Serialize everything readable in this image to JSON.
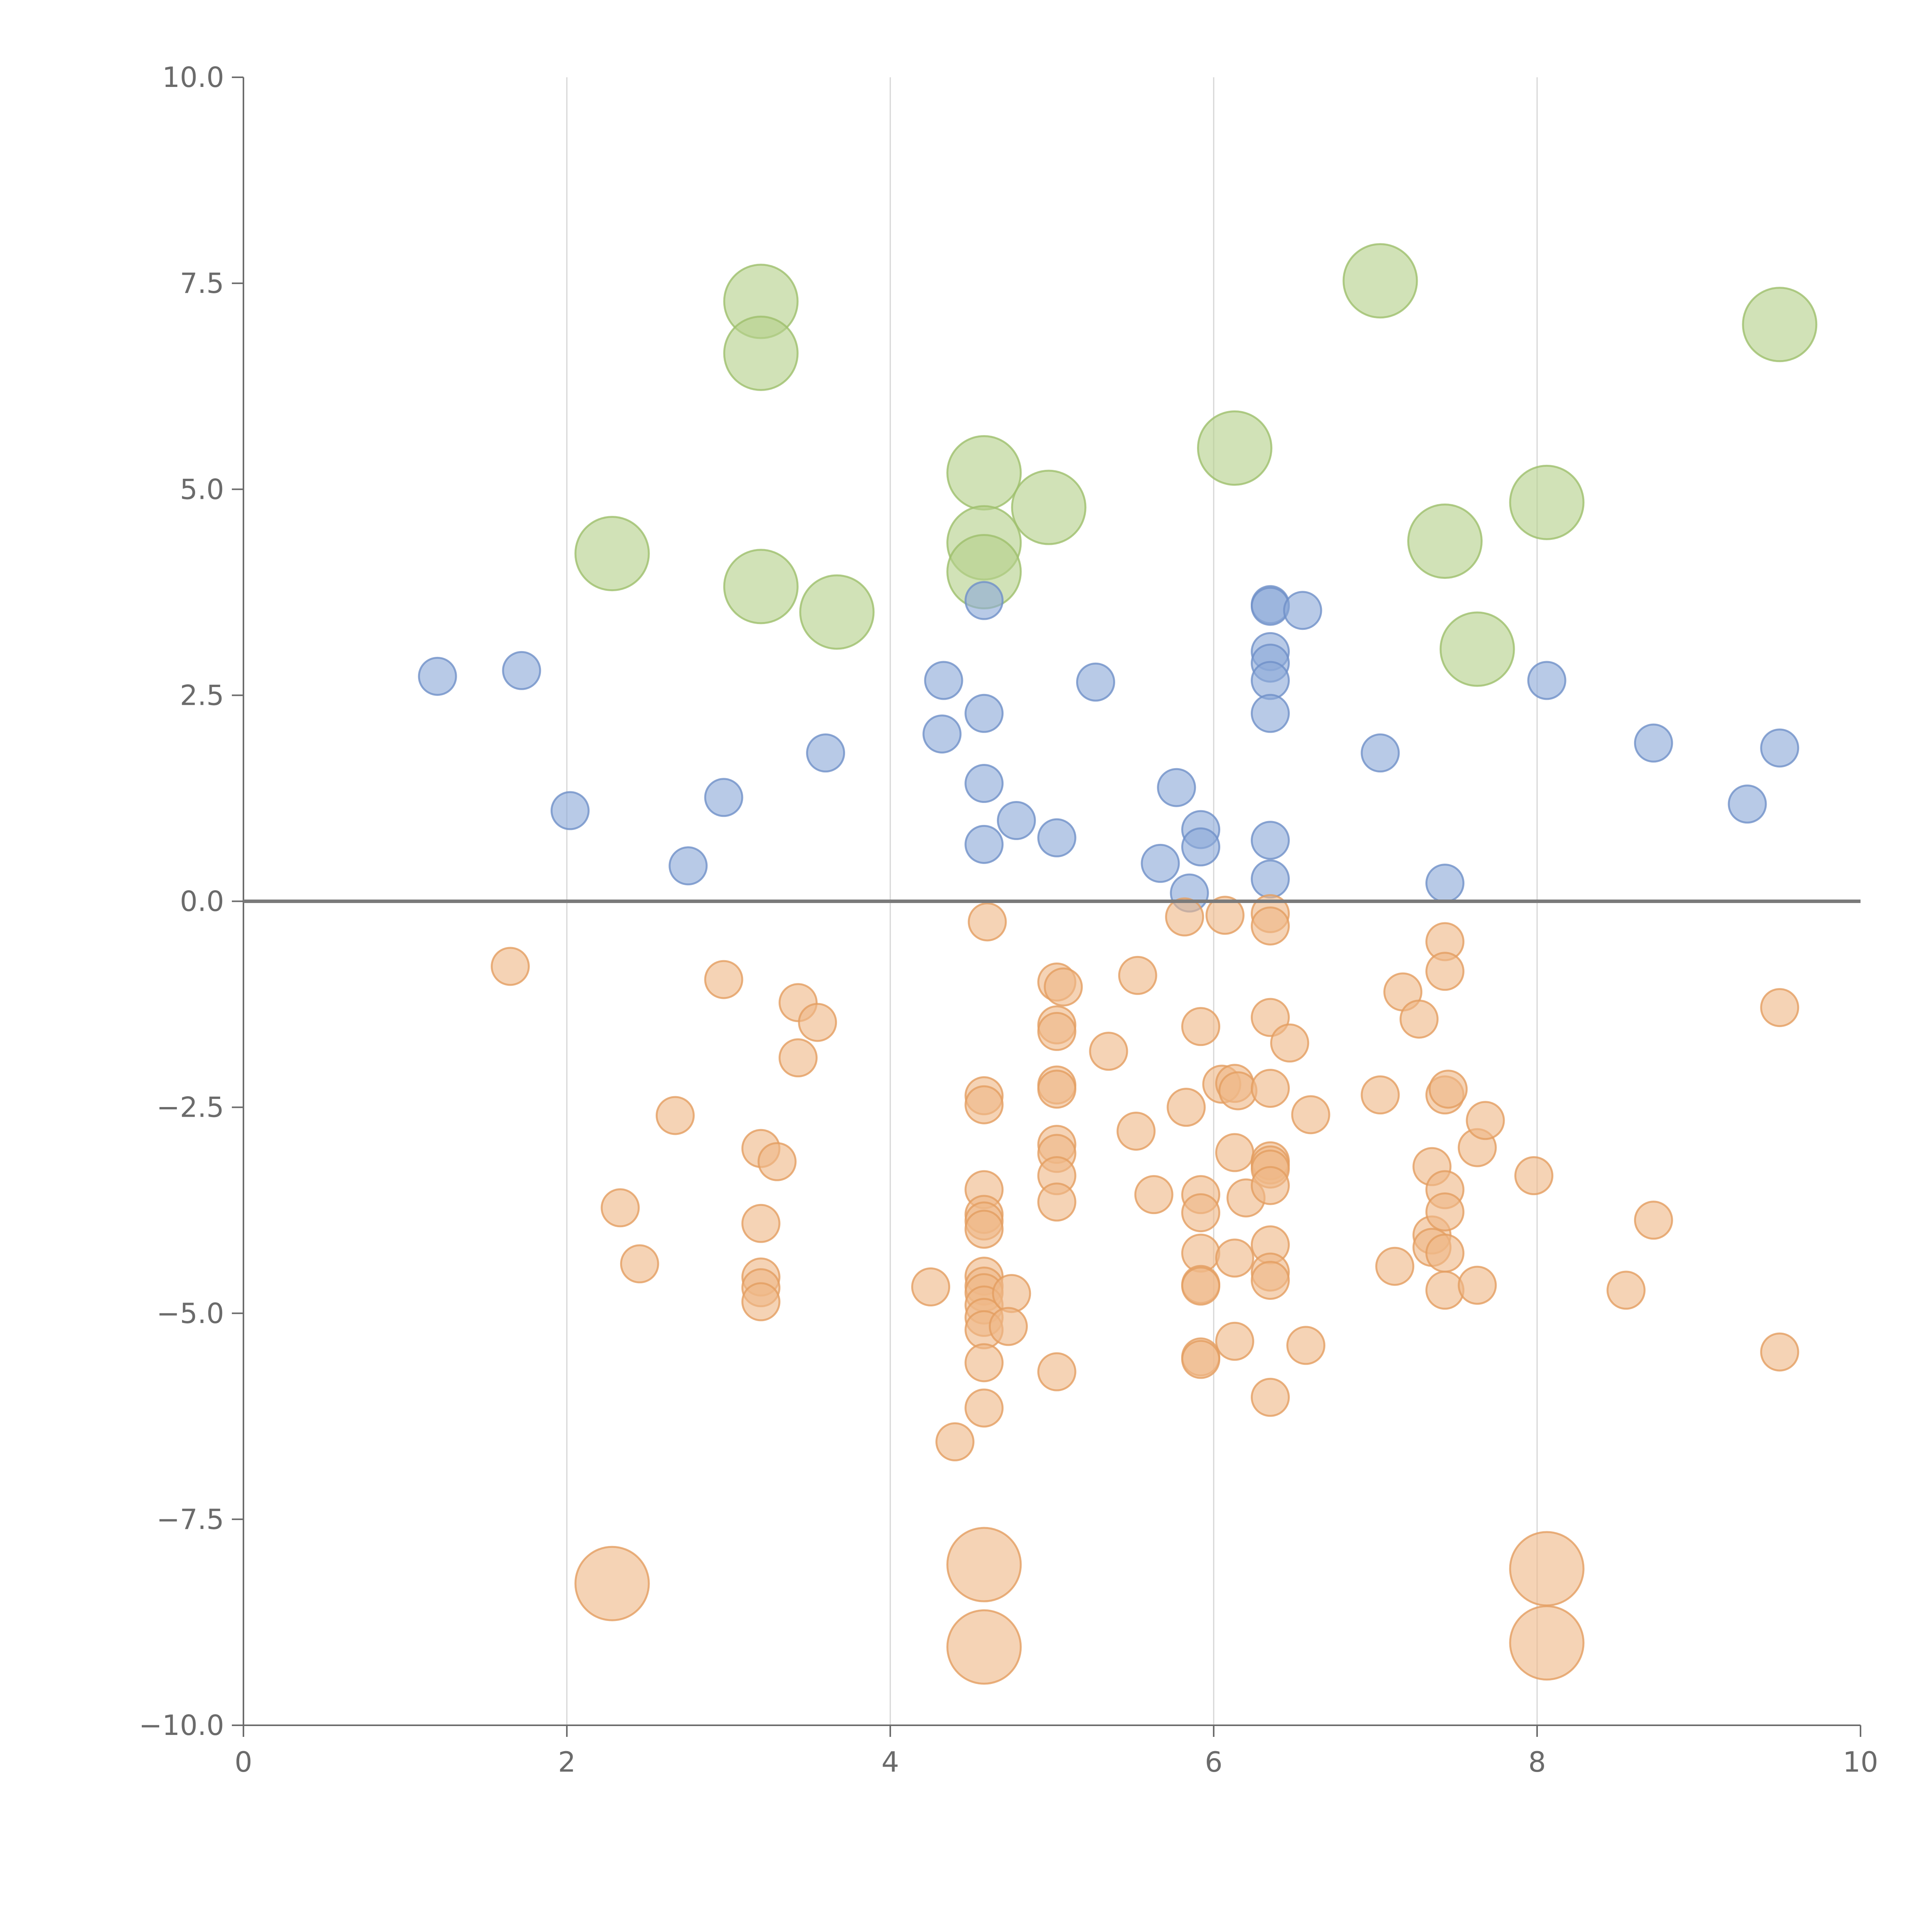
{
  "chart_data": {
    "type": "scatter",
    "subtype": "bubble",
    "title": "",
    "xlabel": "",
    "ylabel": "",
    "xlim": [
      0,
      10
    ],
    "ylim": [
      -10,
      10
    ],
    "x_ticks": [
      0,
      2,
      4,
      6,
      8,
      10
    ],
    "x_tick_labels": [
      "0",
      "2",
      "4",
      "6",
      "8",
      "10"
    ],
    "y_ticks": [
      10,
      7.5,
      5,
      2.5,
      0,
      -2.5,
      -5,
      -7.5,
      -10
    ],
    "y_tick_labels": [
      "10.0",
      "7.5",
      "5.0",
      "2.5",
      "0.0",
      "−2.5",
      "−5.0",
      "−7.5",
      "−10.0"
    ],
    "vertical_grid": true,
    "reference_line_y": 0,
    "series": [
      {
        "name": "green",
        "color": "#b5d08a",
        "stroke": "#9dbf6c",
        "size": "large",
        "points": [
          [
            3.2,
            7.28
          ],
          [
            3.2,
            6.65
          ],
          [
            7.03,
            7.53
          ],
          [
            9.5,
            7.0
          ],
          [
            6.13,
            5.5
          ],
          [
            4.58,
            5.2
          ],
          [
            4.98,
            4.78
          ],
          [
            4.58,
            4.35
          ],
          [
            2.28,
            4.22
          ],
          [
            3.2,
            3.82
          ],
          [
            3.67,
            3.51
          ],
          [
            7.43,
            4.37
          ],
          [
            8.06,
            4.84
          ],
          [
            7.63,
            3.06
          ],
          [
            4.58,
            4.0
          ]
        ]
      },
      {
        "name": "blue",
        "color": "#8ca9d8",
        "stroke": "#6f90c8",
        "size": "small",
        "points": [
          [
            1.2,
            2.73
          ],
          [
            1.72,
            2.8
          ],
          [
            2.02,
            1.1
          ],
          [
            2.75,
            0.43
          ],
          [
            2.97,
            1.26
          ],
          [
            3.6,
            1.8
          ],
          [
            4.32,
            2.03
          ],
          [
            4.33,
            2.68
          ],
          [
            4.58,
            3.65
          ],
          [
            4.58,
            2.28
          ],
          [
            4.58,
            1.43
          ],
          [
            4.58,
            0.69
          ],
          [
            4.78,
            0.98
          ],
          [
            5.03,
            0.77
          ],
          [
            5.27,
            2.66
          ],
          [
            5.77,
            1.38
          ],
          [
            5.92,
            0.87
          ],
          [
            5.92,
            0.66
          ],
          [
            5.67,
            0.46
          ],
          [
            5.85,
            0.1
          ],
          [
            6.35,
            3.6
          ],
          [
            6.35,
            3.58
          ],
          [
            6.55,
            3.53
          ],
          [
            6.35,
            3.03
          ],
          [
            6.35,
            2.89
          ],
          [
            6.35,
            2.68
          ],
          [
            6.35,
            2.28
          ],
          [
            6.35,
            0.74
          ],
          [
            6.35,
            0.27
          ],
          [
            7.03,
            1.8
          ],
          [
            7.43,
            0.22
          ],
          [
            8.06,
            2.68
          ],
          [
            8.72,
            1.92
          ],
          [
            9.3,
            1.18
          ],
          [
            9.5,
            1.86
          ]
        ]
      },
      {
        "name": "orange",
        "color": "#efb888",
        "stroke": "#e39d60",
        "size": "small",
        "points": [
          [
            1.65,
            -0.79
          ],
          [
            2.97,
            -0.95
          ],
          [
            3.43,
            -1.23
          ],
          [
            3.55,
            -1.47
          ],
          [
            3.43,
            -1.9
          ],
          [
            2.67,
            -2.6
          ],
          [
            2.33,
            -3.72
          ],
          [
            2.45,
            -4.4
          ],
          [
            3.2,
            -3.0
          ],
          [
            3.3,
            -3.16
          ],
          [
            3.2,
            -3.91
          ],
          [
            3.2,
            -4.56
          ],
          [
            3.2,
            -4.69
          ],
          [
            3.2,
            -4.86
          ],
          [
            4.6,
            -0.25
          ],
          [
            4.58,
            -2.36
          ],
          [
            4.58,
            -2.47
          ],
          [
            4.58,
            -3.5
          ],
          [
            4.58,
            -3.8
          ],
          [
            4.58,
            -3.88
          ],
          [
            4.58,
            -3.98
          ],
          [
            4.58,
            -4.55
          ],
          [
            4.58,
            -4.67
          ],
          [
            4.58,
            -4.75
          ],
          [
            4.58,
            -4.9
          ],
          [
            4.58,
            -5.05
          ],
          [
            4.58,
            -5.2
          ],
          [
            4.58,
            -5.6
          ],
          [
            4.58,
            -6.15
          ],
          [
            4.25,
            -4.68
          ],
          [
            4.75,
            -4.76
          ],
          [
            4.73,
            -5.16
          ],
          [
            4.4,
            -6.56
          ],
          [
            5.03,
            -0.98
          ],
          [
            5.07,
            -1.04
          ],
          [
            5.03,
            -1.5
          ],
          [
            5.03,
            -1.58
          ],
          [
            5.03,
            -2.23
          ],
          [
            5.03,
            -2.28
          ],
          [
            5.03,
            -2.95
          ],
          [
            5.03,
            -3.06
          ],
          [
            5.03,
            -3.33
          ],
          [
            5.03,
            -3.65
          ],
          [
            5.03,
            -5.71
          ],
          [
            5.35,
            -1.82
          ],
          [
            5.53,
            -0.9
          ],
          [
            5.52,
            -2.79
          ],
          [
            5.63,
            -3.56
          ],
          [
            5.82,
            -0.19
          ],
          [
            5.83,
            -2.5
          ],
          [
            5.92,
            -1.52
          ],
          [
            5.92,
            -3.56
          ],
          [
            5.92,
            -3.78
          ],
          [
            5.92,
            -4.27
          ],
          [
            5.92,
            -4.65
          ],
          [
            5.92,
            -4.67
          ],
          [
            5.92,
            -5.53
          ],
          [
            5.92,
            -5.56
          ],
          [
            6.07,
            -0.17
          ],
          [
            6.05,
            -2.22
          ],
          [
            6.13,
            -2.21
          ],
          [
            6.15,
            -2.3
          ],
          [
            6.13,
            -3.05
          ],
          [
            6.2,
            -3.6
          ],
          [
            6.13,
            -4.33
          ],
          [
            6.13,
            -5.34
          ],
          [
            6.35,
            -0.15
          ],
          [
            6.35,
            -0.3
          ],
          [
            6.35,
            -1.41
          ],
          [
            6.47,
            -1.72
          ],
          [
            6.35,
            -2.27
          ],
          [
            6.35,
            -3.15
          ],
          [
            6.35,
            -3.2
          ],
          [
            6.35,
            -3.25
          ],
          [
            6.35,
            -3.45
          ],
          [
            6.35,
            -4.17
          ],
          [
            6.35,
            -4.5
          ],
          [
            6.35,
            -4.6
          ],
          [
            6.35,
            -6.02
          ],
          [
            6.6,
            -2.59
          ],
          [
            6.57,
            -5.39
          ],
          [
            7.03,
            -2.35
          ],
          [
            7.17,
            -1.1
          ],
          [
            7.27,
            -1.43
          ],
          [
            7.35,
            -3.22
          ],
          [
            7.35,
            -4.05
          ],
          [
            7.35,
            -4.2
          ],
          [
            7.43,
            -0.49
          ],
          [
            7.43,
            -0.85
          ],
          [
            7.43,
            -2.35
          ],
          [
            7.45,
            -2.28
          ],
          [
            7.43,
            -3.5
          ],
          [
            7.43,
            -3.77
          ],
          [
            7.43,
            -4.27
          ],
          [
            7.43,
            -4.72
          ],
          [
            7.12,
            -4.43
          ],
          [
            7.63,
            -2.99
          ],
          [
            7.68,
            -2.66
          ],
          [
            7.63,
            -4.66
          ],
          [
            7.98,
            -3.33
          ],
          [
            8.55,
            -4.72
          ],
          [
            8.72,
            -3.87
          ],
          [
            9.5,
            -1.29
          ],
          [
            9.5,
            -5.47
          ],
          [
            2.28,
            -8.28
          ],
          [
            4.58,
            -8.05
          ],
          [
            4.58,
            -9.05
          ],
          [
            8.06,
            -8.1
          ],
          [
            8.06,
            -9.0
          ]
        ]
      }
    ]
  }
}
